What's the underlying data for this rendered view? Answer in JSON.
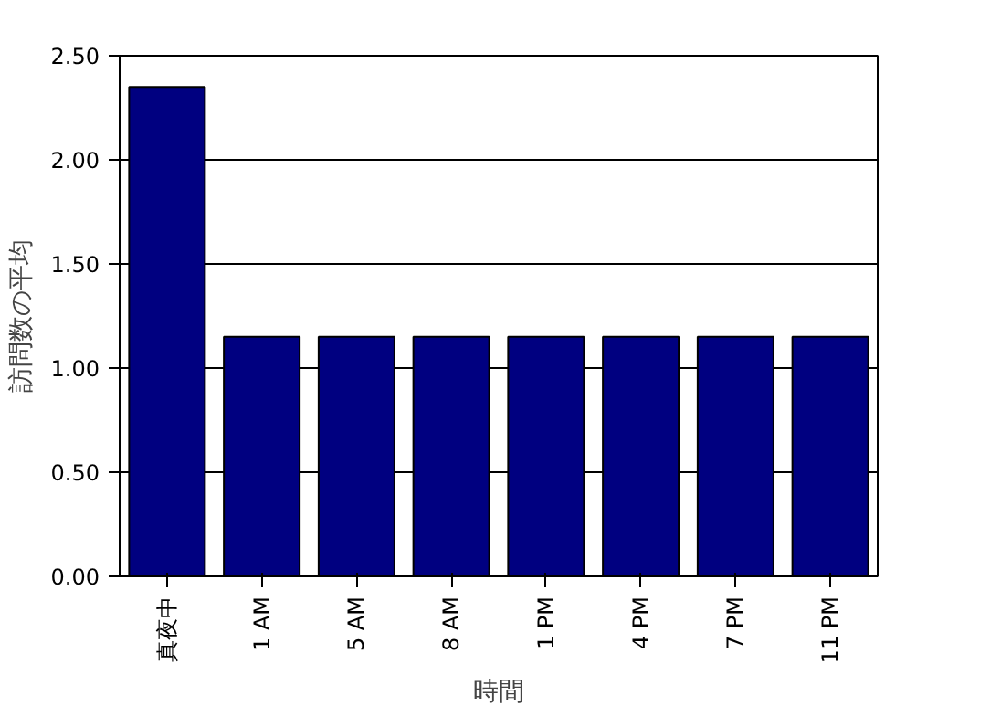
{
  "chart_data": {
    "type": "bar",
    "xlabel": "時間",
    "ylabel": "訪問数の平均",
    "categories": [
      "真夜中",
      "1 AM",
      "5 AM",
      "8 AM",
      "1 PM",
      "4 PM",
      "7 PM",
      "11 PM"
    ],
    "values": [
      2.35,
      1.15,
      1.15,
      1.15,
      1.15,
      1.15,
      1.15,
      1.15
    ],
    "color": "#000080",
    "ylim": [
      0,
      2.5
    ],
    "yticks": [
      {
        "value": 0,
        "label": "0.00"
      },
      {
        "value": 0.5,
        "label": "0.50"
      },
      {
        "value": 1,
        "label": "1.00"
      },
      {
        "value": 1.5,
        "label": "1.50"
      },
      {
        "value": 2,
        "label": "2.00"
      },
      {
        "value": 2.5,
        "label": "2.50"
      }
    ],
    "grid": "y"
  }
}
